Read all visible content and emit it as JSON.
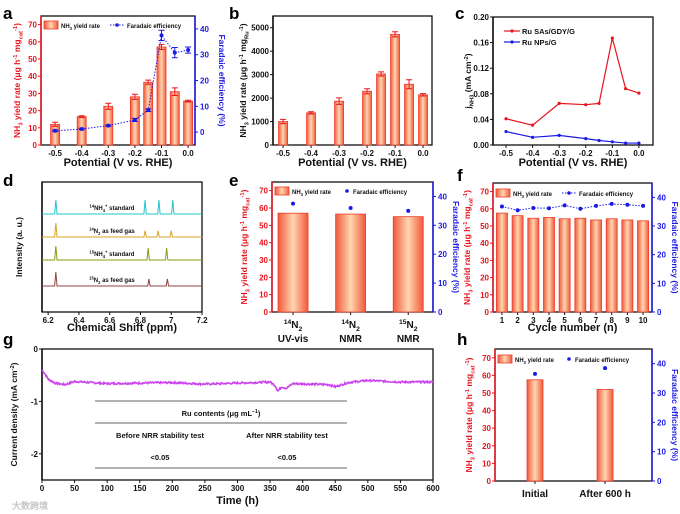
{
  "panel_labels": [
    "a",
    "b",
    "c",
    "d",
    "e",
    "f",
    "g",
    "h"
  ],
  "watermark": "大数跨境",
  "colors": {
    "red": "#e8141e",
    "blue": "#1a1ae6",
    "bar_edge": "#ee3a2a",
    "bar_light": "#ffd2aa",
    "magenta": "#cc44ee"
  },
  "chart_data": [
    {
      "id": "a",
      "type": "bar+line",
      "xlabel": "Potential (V vs. RHE)",
      "ylabel": "NH_{3} yield rate (μg h^{-1} mg_{cat}^{-1})",
      "y2label": "Faradaic efficiency (%)",
      "xlim": [
        -0.553,
        0.026
      ],
      "ylim": [
        0,
        75
      ],
      "y2lim": [
        -5,
        45
      ],
      "xticks": [
        -0.5,
        -0.4,
        -0.3,
        -0.2,
        -0.1,
        0.0
      ],
      "xtick_labels": [
        "-0.5",
        "-0.4",
        "-0.3",
        "-0.2",
        "-0.1",
        "0.0"
      ],
      "yticks": [
        0,
        10,
        20,
        30,
        40,
        50,
        60,
        70
      ],
      "y2ticks": [
        0,
        10,
        20,
        30,
        40
      ],
      "x": [
        -0.5,
        -0.4,
        -0.3,
        -0.2,
        -0.15,
        -0.1,
        -0.05,
        0.0
      ],
      "series": [
        {
          "name": "NH_{3} yield rate",
          "kind": "bar",
          "axis": "y",
          "values": [
            12,
            16.5,
            22.5,
            28,
            36.5,
            57,
            31,
            25.5
          ],
          "err": [
            1.2,
            0.5,
            1.8,
            1.5,
            1.2,
            1.5,
            2.2,
            0.5
          ]
        },
        {
          "name": "Faradaic efficiency",
          "kind": "dotline",
          "axis": "y2",
          "values": [
            0.5,
            1.2,
            2.5,
            4.7,
            8.5,
            37.5,
            30.8,
            31.8
          ],
          "err": [
            0.3,
            0.3,
            0.3,
            0.6,
            0.5,
            2,
            2,
            1.2
          ]
        }
      ]
    },
    {
      "id": "b",
      "type": "bar",
      "xlabel": "Potential (V vs. RHE)",
      "ylabel": "NH_{3} yield rate (μg h^{-1} mg_{Ru}^{-1})",
      "xlim": [
        -0.536,
        0.032
      ],
      "ylim": [
        0,
        5500
      ],
      "xticks": [
        -0.5,
        -0.4,
        -0.3,
        -0.2,
        -0.1,
        0.0
      ],
      "xtick_labels": [
        "-0.5",
        "-0.4",
        "-0.3",
        "-0.2",
        "-0.1",
        "0.0"
      ],
      "yticks": [
        0,
        1000,
        2000,
        3000,
        4000,
        5000
      ],
      "x": [
        -0.5,
        -0.4,
        -0.3,
        -0.2,
        -0.15,
        -0.1,
        -0.05,
        0.0
      ],
      "series": [
        {
          "name": "NH_{3} yield rate",
          "kind": "bar",
          "axis": "y",
          "values": [
            1000,
            1370,
            1870,
            2290,
            3030,
            4720,
            2590,
            2140
          ],
          "err": [
            90,
            50,
            140,
            110,
            90,
            110,
            190,
            50
          ]
        }
      ]
    },
    {
      "id": "c",
      "type": "line",
      "xlabel": "Potential (V vs. RHE)",
      "ylabel": "j_{NH3} (mA cm^{-2})",
      "xlim": [
        -0.549,
        0.053
      ],
      "ylim": [
        0,
        0.2
      ],
      "xticks": [
        -0.5,
        -0.4,
        -0.3,
        -0.2,
        -0.1,
        0.0
      ],
      "xtick_labels": [
        "-0.5",
        "-0.4",
        "-0.3",
        "-0.2",
        "-0.1",
        "0.0"
      ],
      "yticks": [
        0,
        0.04,
        0.08,
        0.12,
        0.16,
        0.2
      ],
      "ytick_labels": [
        "0.00",
        "0.04",
        "0.08",
        "0.12",
        "0.16",
        "0.20"
      ],
      "x": [
        -0.5,
        -0.4,
        -0.3,
        -0.2,
        -0.15,
        -0.1,
        -0.05,
        0.0
      ],
      "series": [
        {
          "name": "Ru SAs/GDY/G",
          "kind": "line",
          "axis": "y",
          "color": "#e8141e",
          "values": [
            0.041,
            0.031,
            0.065,
            0.063,
            0.065,
            0.167,
            0.088,
            0.081
          ]
        },
        {
          "name": "Ru NPs/G",
          "kind": "line",
          "axis": "y",
          "color": "#1a1ae6",
          "values": [
            0.021,
            0.012,
            0.015,
            0.01,
            0.007,
            0.005,
            0.003,
            0.003
          ]
        }
      ]
    },
    {
      "id": "d",
      "type": "spectra",
      "xlabel": "Chemical Shift (ppm)",
      "ylabel": "Intensity (a. u.)",
      "xlim": [
        6.16,
        7.2
      ],
      "xticks": [
        6.2,
        6.4,
        6.6,
        6.8,
        7.0,
        7.2
      ],
      "xtick_labels": [
        "6.2",
        "6.4",
        "6.6",
        "6.8",
        "7",
        "7.2"
      ],
      "series": [
        {
          "name": "^{14}NH_{4}^{+} standard",
          "color": "#22c4cc",
          "peaks": [
            [
              6.25,
              1.0
            ],
            [
              6.83,
              1.0
            ],
            [
              6.92,
              1.0
            ],
            [
              7.01,
              1.0
            ]
          ]
        },
        {
          "name": "^{14}N_{2} as feed gas",
          "color": "#d8a424",
          "peaks": [
            [
              6.25,
              1.0
            ],
            [
              6.83,
              0.45
            ],
            [
              6.915,
              0.45
            ],
            [
              7.0,
              0.45
            ]
          ]
        },
        {
          "name": "^{15}NH_{4}^{+} standard",
          "color": "#8a9a12",
          "peaks": [
            [
              6.25,
              1.0
            ],
            [
              6.85,
              0.85
            ],
            [
              6.97,
              0.85
            ]
          ]
        },
        {
          "name": "^{15}N_{2} as feed gas",
          "color": "#8e4444",
          "peaks": [
            [
              6.25,
              1.0
            ],
            [
              6.855,
              0.5
            ],
            [
              6.975,
              0.5
            ]
          ]
        }
      ]
    },
    {
      "id": "e",
      "type": "bar+scatter",
      "ylabel": "NH_{3} yield rate (μg h^{-1} mg_{cat}^{-1})",
      "y2label": "Faradaic efficiency (%)",
      "ylim": [
        0,
        75
      ],
      "y2lim": [
        0,
        45
      ],
      "yticks": [
        0,
        10,
        20,
        30,
        40,
        50,
        60,
        70
      ],
      "y2ticks": [
        0,
        10,
        20,
        30,
        40
      ],
      "categories": [
        [
          "^{14}N_{2}",
          "UV-vis"
        ],
        [
          "^{14}N_{2}",
          "NMR"
        ],
        [
          "^{15}N_{2}",
          "NMR"
        ]
      ],
      "series": [
        {
          "name": "NH_{3} yield rate",
          "kind": "bar",
          "axis": "y",
          "values": [
            57,
            56.5,
            55
          ]
        },
        {
          "name": "Faradaic efficiency",
          "kind": "scatter",
          "axis": "y2",
          "values": [
            37.5,
            36,
            35
          ]
        }
      ]
    },
    {
      "id": "f",
      "type": "bar+line",
      "xlabel": "Cycle number (n)",
      "ylabel": "NH_{3} yield rate (μg h^{-1} mg_{cat}^{-1})",
      "y2label": "Faradaic efficiency (%)",
      "ylim": [
        0,
        75
      ],
      "y2lim": [
        0,
        45
      ],
      "yticks": [
        0,
        10,
        20,
        30,
        40,
        50,
        60,
        70
      ],
      "y2ticks": [
        0,
        10,
        20,
        30,
        40
      ],
      "categories": [
        "1",
        "2",
        "3",
        "4",
        "5",
        "6",
        "7",
        "8",
        "9",
        "10"
      ],
      "series": [
        {
          "name": "NH_{3} yield rate",
          "kind": "bar",
          "axis": "y",
          "values": [
            57.5,
            56,
            54.5,
            55,
            54.2,
            54.5,
            53.5,
            54.2,
            53.5,
            53
          ]
        },
        {
          "name": "Faradaic efficiency",
          "kind": "dotline",
          "axis": "y2",
          "values": [
            36.8,
            35.5,
            36.3,
            36.2,
            37.2,
            36,
            37,
            37.7,
            37.4,
            37
          ]
        }
      ]
    },
    {
      "id": "g",
      "type": "line",
      "xlabel": "Time (h)",
      "ylabel": "Current density (mA cm^{-2})",
      "xlim": [
        0,
        600
      ],
      "ylim": [
        -2.5,
        0
      ],
      "xticks": [
        0,
        50,
        100,
        150,
        200,
        250,
        300,
        350,
        400,
        450,
        500,
        550,
        600
      ],
      "yticks": [
        0,
        -1,
        -2
      ],
      "series": [
        {
          "name": "Current density",
          "kind": "trace",
          "points": [
            [
              0,
              -0.4
            ],
            [
              3,
              -0.45
            ],
            [
              10,
              -0.58
            ],
            [
              20,
              -0.65
            ],
            [
              35,
              -0.68
            ],
            [
              50,
              -0.62
            ],
            [
              100,
              -0.66
            ],
            [
              150,
              -0.65
            ],
            [
              200,
              -0.64
            ],
            [
              250,
              -0.67
            ],
            [
              300,
              -0.65
            ],
            [
              350,
              -0.63
            ],
            [
              358,
              -0.7
            ],
            [
              362,
              -0.8
            ],
            [
              368,
              -0.72
            ],
            [
              375,
              -0.75
            ],
            [
              385,
              -0.66
            ],
            [
              440,
              -0.68
            ],
            [
              450,
              -0.72
            ],
            [
              470,
              -0.64
            ],
            [
              500,
              -0.6
            ],
            [
              550,
              -0.63
            ],
            [
              600,
              -0.63
            ]
          ]
        }
      ],
      "table": {
        "header": "Ru contents (μg mL^{−1})",
        "columns": [
          "Before NRR stability test",
          "After NRR stability test"
        ],
        "values": [
          "<0.05",
          "<0.05"
        ]
      }
    },
    {
      "id": "h",
      "type": "bar+scatter",
      "ylabel": "NH_{3} yield rate (μg h^{-1} mg_{cat}^{-1})",
      "y2label": "Faradaic efficiency (%)",
      "ylim": [
        0,
        75
      ],
      "y2lim": [
        0,
        45
      ],
      "yticks": [
        0,
        10,
        20,
        30,
        40,
        50,
        60,
        70
      ],
      "y2ticks": [
        0,
        10,
        20,
        30,
        40
      ],
      "categories": [
        [
          "Initial"
        ],
        [
          "After 600 h"
        ]
      ],
      "series": [
        {
          "name": "NH_{3} yield rate",
          "kind": "bar",
          "axis": "y",
          "values": [
            57.5,
            52
          ]
        },
        {
          "name": "Faradaic efficiency",
          "kind": "scatter",
          "axis": "y2",
          "values": [
            36.5,
            38.5
          ]
        }
      ]
    }
  ]
}
